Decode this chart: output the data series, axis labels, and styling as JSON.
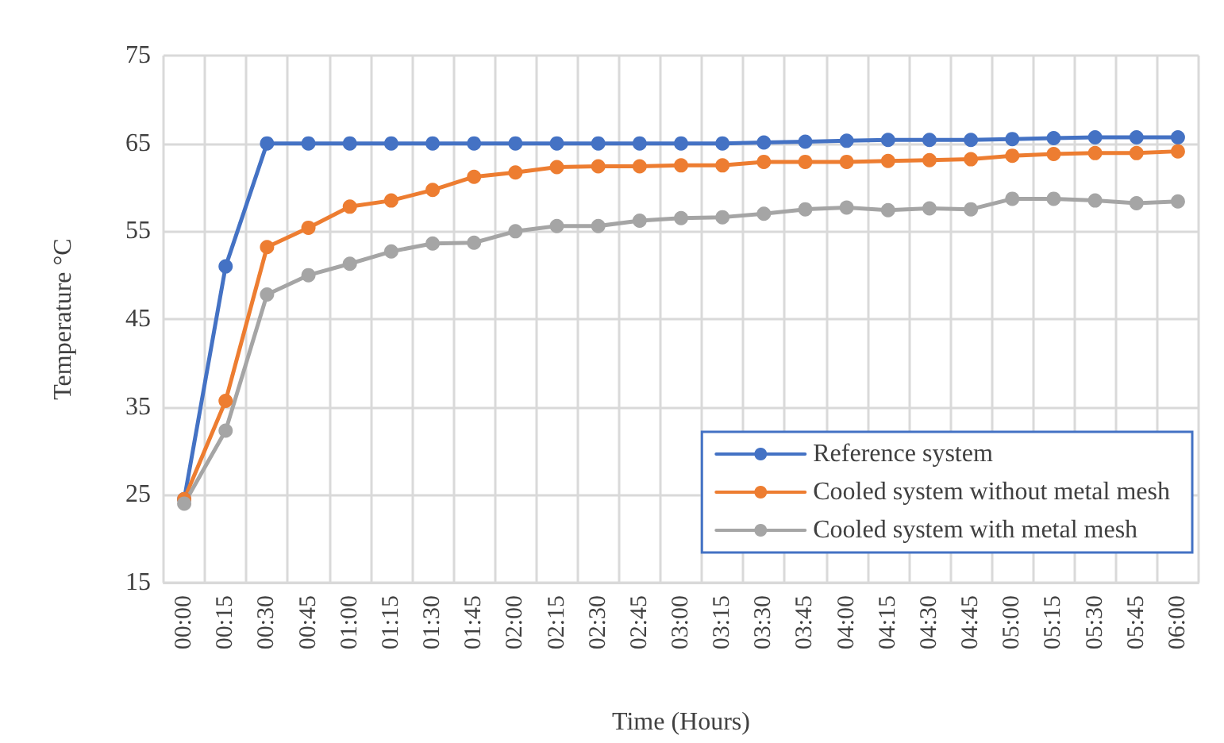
{
  "chart_data": {
    "type": "line",
    "xlabel": "Time (Hours)",
    "ylabel": "Temperature °C",
    "categories": [
      "00:00",
      "00:15",
      "00:30",
      "00:45",
      "01:00",
      "01:15",
      "01:30",
      "01:45",
      "02:00",
      "02:15",
      "02:30",
      "02:45",
      "03:00",
      "03:15",
      "03:30",
      "03:45",
      "04:00",
      "04:15",
      "04:30",
      "04:45",
      "05:00",
      "05:15",
      "05:30",
      "05:45",
      "06:00"
    ],
    "series": [
      {
        "name": "Reference system",
        "color": "#4472c4",
        "values": [
          24.5,
          51,
          65,
          65,
          65,
          65,
          65,
          65,
          65,
          65,
          65,
          65,
          65,
          65,
          65.1,
          65.2,
          65.3,
          65.4,
          65.4,
          65.4,
          65.5,
          65.6,
          65.7,
          65.7,
          65.7
        ]
      },
      {
        "name": "Cooled system without metal mesh",
        "color": "#ed7d31",
        "values": [
          24.5,
          35.7,
          53.2,
          55.4,
          57.8,
          58.5,
          59.7,
          61.2,
          61.7,
          62.3,
          62.4,
          62.4,
          62.5,
          62.5,
          62.9,
          62.9,
          62.9,
          63.0,
          63.1,
          63.2,
          63.6,
          63.8,
          63.9,
          63.9,
          64.1
        ]
      },
      {
        "name": "Cooled system with metal mesh",
        "color": "#a5a5a5",
        "values": [
          24,
          32.3,
          47.8,
          50,
          51.3,
          52.7,
          53.6,
          53.7,
          55,
          55.6,
          55.6,
          56.2,
          56.5,
          56.6,
          57,
          57.5,
          57.7,
          57.4,
          57.6,
          57.5,
          58.7,
          58.7,
          58.5,
          58.2,
          58.4
        ]
      }
    ],
    "ylim": [
      15,
      75
    ],
    "yticks": [
      15,
      25,
      35,
      45,
      55,
      65,
      75
    ],
    "grid": true,
    "legend": "bottom right",
    "marker": "circle",
    "line_style": "solid"
  }
}
